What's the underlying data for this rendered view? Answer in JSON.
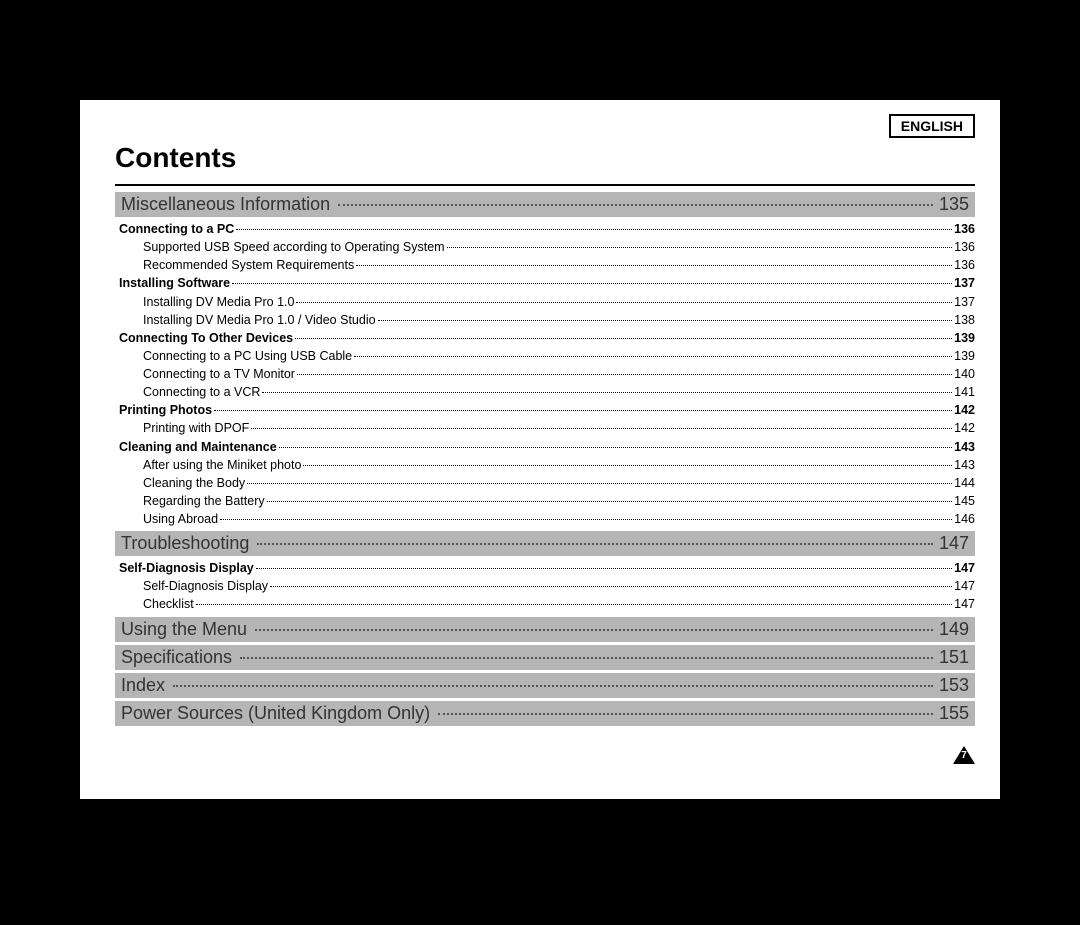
{
  "language_label": "ENGLISH",
  "title": "Contents",
  "page_number": "7",
  "colors": {
    "page_bg": "#ffffff",
    "outer_bg": "#000000",
    "section_bg": "#b5b5b5",
    "section_text": "#333333",
    "body_text": "#000000"
  },
  "fonts": {
    "title_size_pt": 28,
    "section_size_pt": 18,
    "item_size_pt": 12.5,
    "family": "Arial"
  },
  "sections": [
    {
      "label": "Miscellaneous Information",
      "page": "135",
      "items": [
        {
          "level": 1,
          "label": "Connecting to a PC",
          "page": "136"
        },
        {
          "level": 2,
          "label": "Supported USB Speed according to Operating System",
          "page": "136"
        },
        {
          "level": 2,
          "label": "Recommended System Requirements",
          "page": "136"
        },
        {
          "level": 1,
          "label": "Installing Software",
          "page": "137"
        },
        {
          "level": 2,
          "label": "Installing DV Media Pro 1.0",
          "page": "137"
        },
        {
          "level": 2,
          "label": "Installing DV Media Pro 1.0 / Video Studio",
          "page": "138"
        },
        {
          "level": 1,
          "label": "Connecting To Other Devices",
          "page": "139"
        },
        {
          "level": 2,
          "label": "Connecting to a PC Using USB Cable",
          "page": "139"
        },
        {
          "level": 2,
          "label": "Connecting to a TV Monitor",
          "page": "140"
        },
        {
          "level": 2,
          "label": "Connecting to a VCR",
          "page": "141"
        },
        {
          "level": 1,
          "label": "Printing Photos",
          "page": "142"
        },
        {
          "level": 2,
          "label": "Printing with DPOF",
          "page": "142"
        },
        {
          "level": 1,
          "label": "Cleaning and Maintenance",
          "page": "143"
        },
        {
          "level": 2,
          "label": "After using the Miniket photo",
          "page": "143"
        },
        {
          "level": 2,
          "label": "Cleaning the Body",
          "page": "144"
        },
        {
          "level": 2,
          "label": "Regarding the Battery",
          "page": "145"
        },
        {
          "level": 2,
          "label": "Using Abroad",
          "page": "146"
        }
      ]
    },
    {
      "label": "Troubleshooting",
      "page": "147",
      "items": [
        {
          "level": 1,
          "label": "Self-Diagnosis Display",
          "page": "147"
        },
        {
          "level": 2,
          "label": "Self-Diagnosis Display",
          "page": "147"
        },
        {
          "level": 2,
          "label": "Checklist",
          "page": "147"
        }
      ]
    },
    {
      "label": "Using the Menu",
      "page": "149",
      "items": []
    },
    {
      "label": "Specifications",
      "page": "151",
      "items": []
    },
    {
      "label": "Index",
      "page": "153",
      "items": []
    },
    {
      "label": "Power Sources (United Kingdom Only)",
      "page": "155",
      "items": []
    }
  ]
}
